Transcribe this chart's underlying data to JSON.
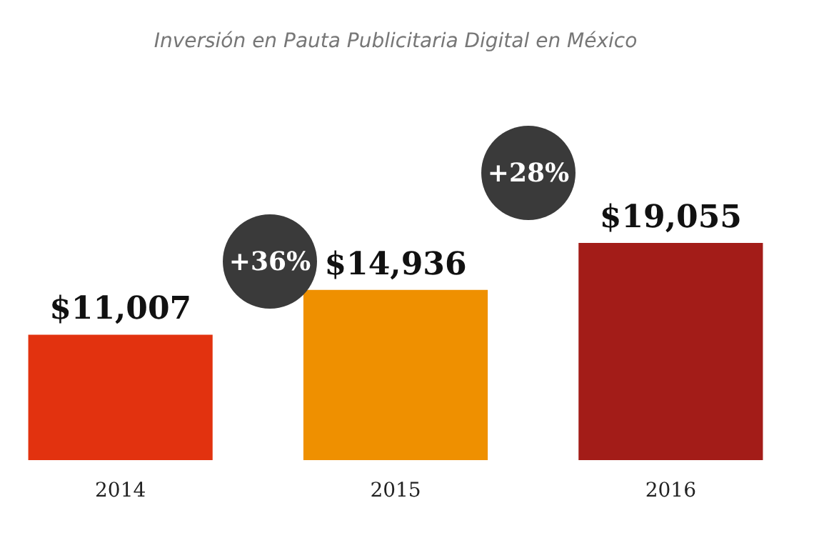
{
  "chart_data": {
    "type": "bar",
    "title": "Inversión en Pauta Publicitaria Digital en México",
    "categories": [
      "2014",
      "2015",
      "2016"
    ],
    "values": [
      11007,
      14936,
      19055
    ],
    "colors": [
      "#e2320f",
      "#ef9000",
      "#a31c18"
    ],
    "value_labels": [
      "$11,007",
      "$14,936",
      "$19,055"
    ],
    "annotations": [
      "+36%",
      "+28%"
    ]
  }
}
